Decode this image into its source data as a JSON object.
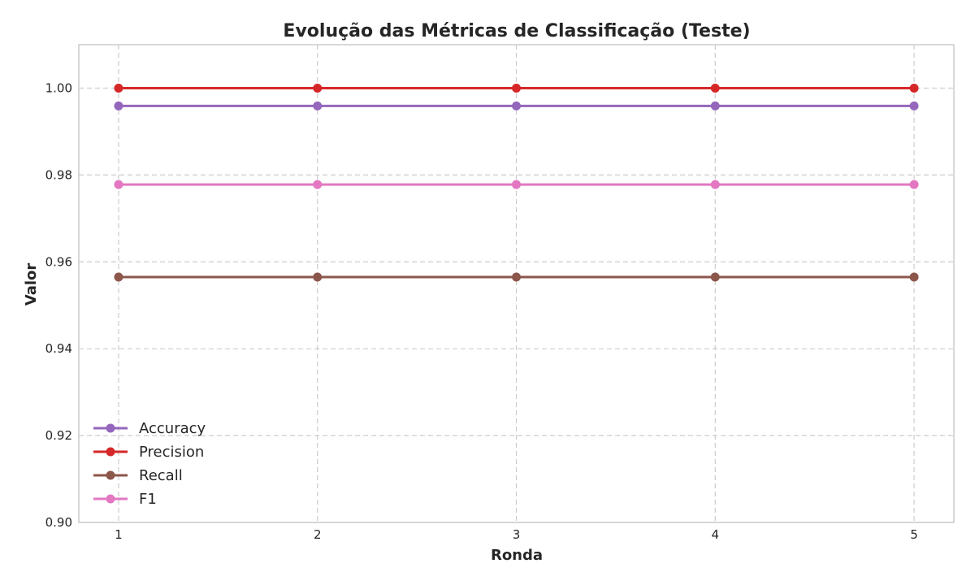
{
  "chart_data": {
    "type": "line",
    "title": "Evolução das Métricas de Classificação (Teste)",
    "xlabel": "Ronda",
    "ylabel": "Valor",
    "x": [
      1,
      2,
      3,
      4,
      5
    ],
    "xticks": [
      "1",
      "2",
      "3",
      "4",
      "5"
    ],
    "yticks": [
      "0.90",
      "0.92",
      "0.94",
      "0.96",
      "0.98",
      "1.00"
    ],
    "xlim": [
      0.8,
      5.2
    ],
    "ylim": [
      0.9,
      1.01
    ],
    "grid": true,
    "legend_position": "lower-left",
    "series": [
      {
        "name": "Accuracy",
        "color": "#9467bd",
        "values": [
          0.9959,
          0.9959,
          0.9959,
          0.9959,
          0.9959
        ]
      },
      {
        "name": "Precision",
        "color": "#d62728",
        "values": [
          1.0,
          1.0,
          1.0,
          1.0,
          1.0
        ]
      },
      {
        "name": "Recall",
        "color": "#8c564b",
        "values": [
          0.9565,
          0.9565,
          0.9565,
          0.9565,
          0.9565
        ]
      },
      {
        "name": "F1",
        "color": "#e377c2",
        "values": [
          0.9778,
          0.9778,
          0.9778,
          0.9778,
          0.9778
        ]
      }
    ]
  }
}
